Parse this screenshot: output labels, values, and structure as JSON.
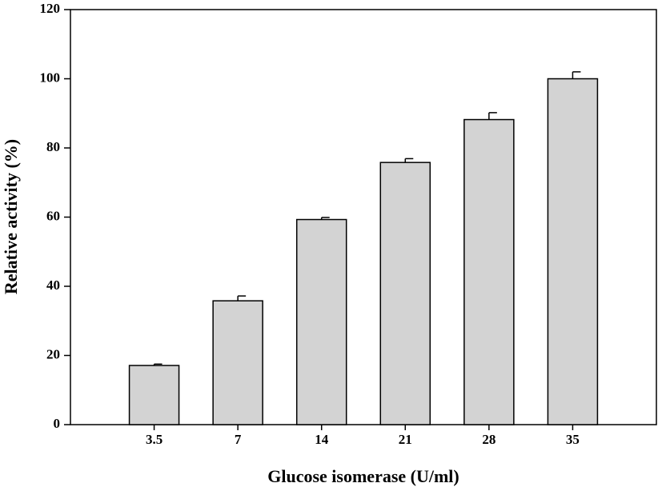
{
  "chart_data": {
    "type": "bar",
    "x_label": "Glucose isomerase (U/ml)",
    "y_label": "Relative activity (%)",
    "categories": [
      "3.5",
      "7",
      "14",
      "21",
      "28",
      "35"
    ],
    "values": [
      17.1,
      35.8,
      59.3,
      75.8,
      88.2,
      100
    ],
    "errors": [
      0.4,
      1.4,
      0.6,
      1.1,
      2.0,
      2.0
    ],
    "color": "#d3d3d3",
    "ylim": [
      0,
      120
    ],
    "yticks": [
      0,
      20,
      40,
      60,
      80,
      100,
      120
    ],
    "grid": false
  }
}
